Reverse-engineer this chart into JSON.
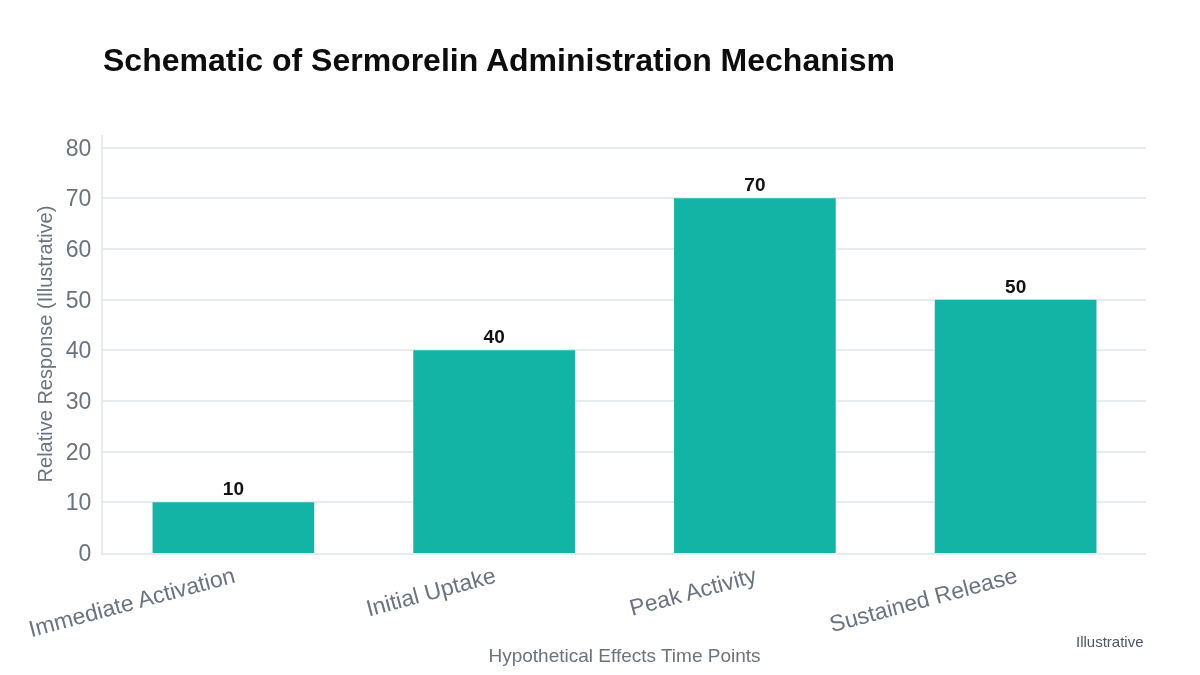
{
  "chart_data": {
    "type": "bar",
    "title": "Schematic of Sermorelin Administration Mechanism",
    "xlabel": "Hypothetical Effects Time Points",
    "ylabel": "Relative Response (Illustrative)",
    "categories": [
      "Immediate Activation",
      "Initial Uptake",
      "Peak Activity",
      "Sustained Release"
    ],
    "values": [
      10,
      40,
      70,
      50
    ],
    "color": "#13b3a6",
    "ylim": [
      0,
      82.5
    ],
    "yticks": [
      0,
      10,
      20,
      30,
      40,
      50,
      60,
      70,
      80
    ],
    "grid": "y",
    "data_labels": true,
    "annotations": [
      "Illustrative"
    ]
  }
}
